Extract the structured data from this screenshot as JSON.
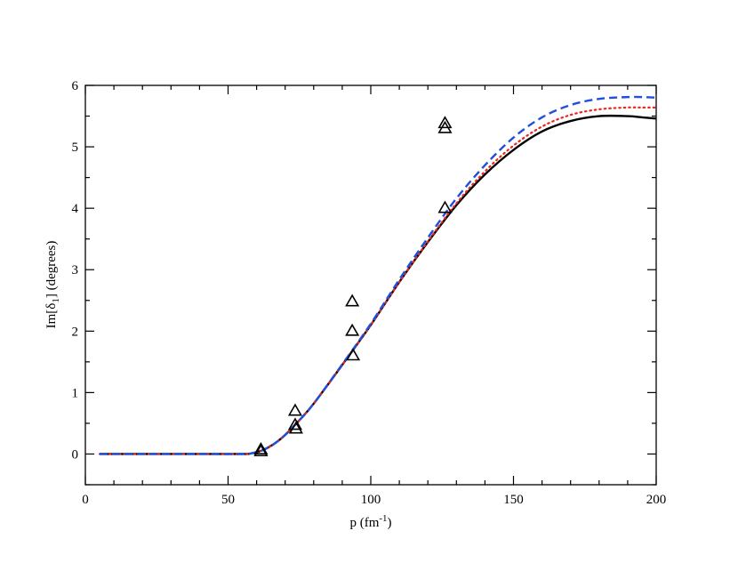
{
  "chart_data": {
    "type": "line",
    "title": "",
    "xlabel": "p (fm",
    "xlabel_sup": "-1",
    "xlabel_close": ")",
    "ylabel_pre": "Im[δ",
    "ylabel_sub": "1",
    "ylabel_post": "] (degrees)",
    "xlim": [
      0,
      200
    ],
    "ylim": [
      -0.5,
      6
    ],
    "xticks": [
      0,
      50,
      100,
      150,
      200
    ],
    "yticks": [
      0,
      1,
      2,
      3,
      4,
      5,
      6
    ],
    "grid": false,
    "legend": "none",
    "colors": {
      "solid": "#000000",
      "dotted": "#e8281e",
      "dashed": "#1f4fe0",
      "markers": "#000000"
    },
    "series": [
      {
        "style": "solid",
        "x": [
          5,
          20,
          40,
          55,
          58,
          62,
          66,
          70,
          75,
          80,
          90,
          100,
          110,
          120,
          130,
          140,
          150,
          160,
          170,
          180,
          190,
          195,
          200
        ],
        "y": [
          0,
          0,
          0,
          0,
          0.01,
          0.06,
          0.16,
          0.31,
          0.55,
          0.82,
          1.45,
          2.1,
          2.8,
          3.45,
          4.05,
          4.55,
          4.95,
          5.25,
          5.42,
          5.5,
          5.5,
          5.48,
          5.46
        ]
      },
      {
        "style": "dotted",
        "x": [
          5,
          20,
          40,
          55,
          58,
          62,
          66,
          70,
          75,
          80,
          90,
          100,
          110,
          120,
          130,
          140,
          150,
          160,
          170,
          180,
          190,
          195,
          200
        ],
        "y": [
          0,
          0,
          0,
          0,
          0.01,
          0.06,
          0.16,
          0.31,
          0.55,
          0.82,
          1.45,
          2.1,
          2.8,
          3.46,
          4.08,
          4.6,
          5.02,
          5.33,
          5.52,
          5.61,
          5.64,
          5.64,
          5.64
        ]
      },
      {
        "style": "dashed",
        "x": [
          5,
          20,
          40,
          55,
          58,
          62,
          66,
          70,
          75,
          80,
          90,
          100,
          110,
          120,
          130,
          140,
          150,
          160,
          170,
          180,
          190,
          195,
          200
        ],
        "y": [
          0,
          0,
          0,
          0,
          0.01,
          0.06,
          0.16,
          0.31,
          0.55,
          0.82,
          1.46,
          2.12,
          2.84,
          3.52,
          4.16,
          4.7,
          5.15,
          5.48,
          5.68,
          5.78,
          5.81,
          5.81,
          5.8
        ]
      }
    ],
    "points": {
      "marker": "triangle",
      "x": [
        61.5,
        61.5,
        73.5,
        73.5,
        73.8,
        93.5,
        93.5,
        93.8,
        126,
        126,
        126
      ],
      "y": [
        0.04,
        0.07,
        0.7,
        0.47,
        0.41,
        2.48,
        2.0,
        1.6,
        5.38,
        5.3,
        4.0
      ]
    }
  }
}
